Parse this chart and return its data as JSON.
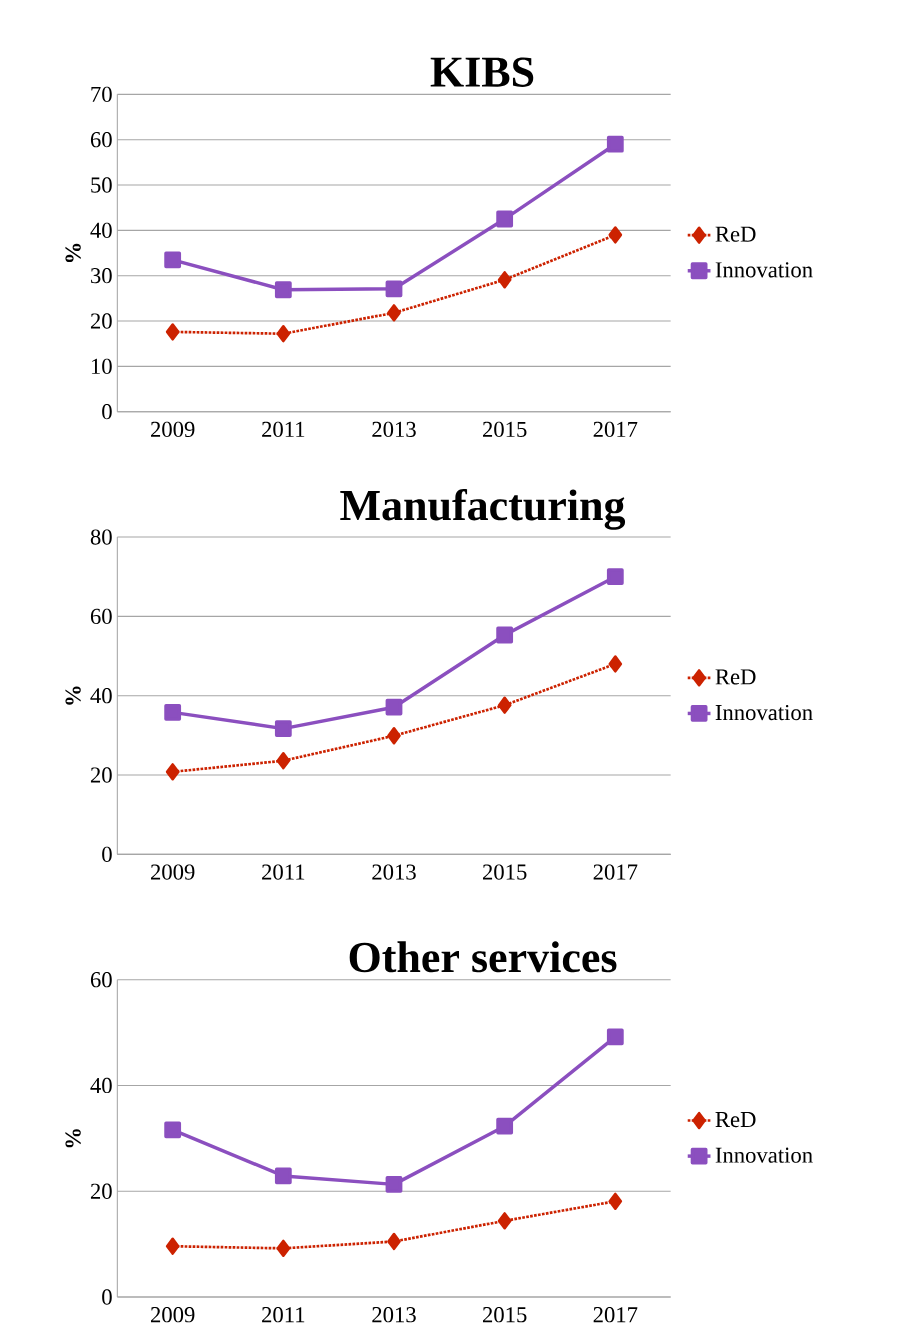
{
  "chart_data": [
    {
      "type": "line",
      "title": "KIBS",
      "ylabel": "%",
      "categories": [
        "2009",
        "2011",
        "2013",
        "2015",
        "2017"
      ],
      "ylim": [
        0,
        70
      ],
      "yticks": [
        0,
        10,
        20,
        30,
        40,
        50,
        60,
        70
      ],
      "grid": "y",
      "legend": "right",
      "series": [
        {
          "name": "ReD",
          "color": "#cc2200",
          "marker": "diamond",
          "line_style": "dotted",
          "values": [
            17.6,
            17.2,
            21.8,
            29.1,
            39.0
          ]
        },
        {
          "name": "Innovation",
          "color": "#8b4fbf",
          "marker": "square",
          "line_style": "solid",
          "values": [
            33.5,
            26.9,
            27.1,
            42.5,
            59.0
          ]
        }
      ]
    },
    {
      "type": "line",
      "title": "Manufacturing",
      "ylabel": "%",
      "categories": [
        "2009",
        "2011",
        "2013",
        "2015",
        "2017"
      ],
      "ylim": [
        0,
        80
      ],
      "yticks": [
        0,
        20,
        40,
        60,
        80
      ],
      "grid": "y",
      "legend": "right",
      "series": [
        {
          "name": "ReD",
          "color": "#cc2200",
          "marker": "diamond",
          "line_style": "dotted",
          "values": [
            20.8,
            23.6,
            29.9,
            37.6,
            48.0
          ]
        },
        {
          "name": "Innovation",
          "color": "#8b4fbf",
          "marker": "square",
          "line_style": "solid",
          "values": [
            35.8,
            31.7,
            37.1,
            55.3,
            70.0
          ]
        }
      ]
    },
    {
      "type": "line",
      "title": "Other services",
      "ylabel": "%",
      "categories": [
        "2009",
        "2011",
        "2013",
        "2015",
        "2017"
      ],
      "ylim": [
        0,
        60
      ],
      "yticks": [
        0,
        20,
        40,
        60
      ],
      "grid": "y",
      "legend": "right",
      "series": [
        {
          "name": "ReD",
          "color": "#cc2200",
          "marker": "diamond",
          "line_style": "dotted",
          "values": [
            9.6,
            9.2,
            10.5,
            14.4,
            18.1
          ]
        },
        {
          "name": "Innovation",
          "color": "#8b4fbf",
          "marker": "square",
          "line_style": "solid",
          "values": [
            31.6,
            22.9,
            21.3,
            32.3,
            49.2
          ]
        }
      ]
    }
  ]
}
